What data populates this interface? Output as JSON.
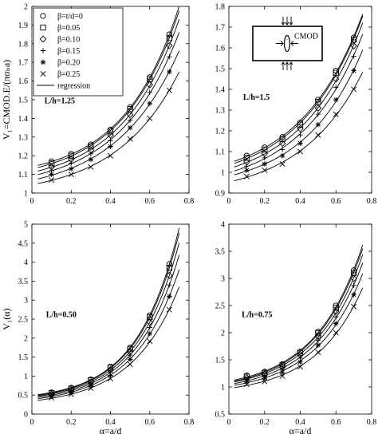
{
  "figure": {
    "legend_entries": [
      "β=t/d=0",
      "β=0.05",
      "β=0.10",
      "β=0.15",
      "β=0.20",
      "β=0.25",
      "regression"
    ],
    "inset_label": "CMOD"
  },
  "chart_data": [
    {
      "type": "scatter",
      "panel_label": "L/h=1.25",
      "ylabel": "V₁=CMOD.E/(πσₙa)",
      "xlabel": "",
      "xlim": [
        0,
        0.8
      ],
      "ylim": [
        1,
        2
      ],
      "xticks": [
        0,
        0.2,
        0.4,
        0.6,
        0.8
      ],
      "yticks": [
        1,
        1.1,
        1.2,
        1.3,
        1.4,
        1.5,
        1.6,
        1.7,
        1.8,
        1.9,
        2
      ],
      "legend_position": "top-left",
      "x": [
        0.1,
        0.2,
        0.3,
        0.4,
        0.5,
        0.6,
        0.7
      ],
      "series": [
        {
          "name": "β=t/d=0",
          "marker": "circle",
          "values": [
            1.17,
            1.21,
            1.26,
            1.34,
            1.46,
            1.62,
            1.85
          ]
        },
        {
          "name": "β=0.05",
          "marker": "square",
          "values": [
            1.16,
            1.2,
            1.25,
            1.33,
            1.45,
            1.61,
            1.83
          ]
        },
        {
          "name": "β=0.10",
          "marker": "diamond",
          "values": [
            1.14,
            1.18,
            1.23,
            1.31,
            1.42,
            1.58,
            1.79
          ]
        },
        {
          "name": "β=0.15",
          "marker": "plus",
          "values": [
            1.12,
            1.16,
            1.21,
            1.28,
            1.39,
            1.54,
            1.73
          ]
        },
        {
          "name": "β=0.20",
          "marker": "asterisk",
          "values": [
            1.1,
            1.13,
            1.18,
            1.25,
            1.35,
            1.48,
            1.65
          ]
        },
        {
          "name": "β=0.25",
          "marker": "cross",
          "values": [
            1.07,
            1.1,
            1.14,
            1.2,
            1.29,
            1.4,
            1.55
          ]
        }
      ]
    },
    {
      "type": "scatter",
      "panel_label": "L/h=1.5",
      "ylabel": "",
      "xlabel": "",
      "xlim": [
        0,
        0.8
      ],
      "ylim": [
        0.9,
        1.8
      ],
      "xticks": [
        0,
        0.2,
        0.4,
        0.6,
        0.8
      ],
      "yticks": [
        0.9,
        1,
        1.1,
        1.2,
        1.3,
        1.4,
        1.5,
        1.6,
        1.7,
        1.8
      ],
      "x": [
        0.1,
        0.2,
        0.3,
        0.4,
        0.5,
        0.6,
        0.7
      ],
      "series": [
        {
          "name": "β=t/d=0",
          "marker": "circle",
          "values": [
            1.08,
            1.12,
            1.17,
            1.24,
            1.35,
            1.49,
            1.65
          ]
        },
        {
          "name": "β=0.05",
          "marker": "square",
          "values": [
            1.07,
            1.11,
            1.16,
            1.23,
            1.34,
            1.48,
            1.64
          ]
        },
        {
          "name": "β=0.10",
          "marker": "diamond",
          "values": [
            1.05,
            1.09,
            1.14,
            1.21,
            1.31,
            1.45,
            1.61
          ]
        },
        {
          "name": "β=0.15",
          "marker": "plus",
          "values": [
            1.03,
            1.07,
            1.11,
            1.18,
            1.28,
            1.41,
            1.56
          ]
        },
        {
          "name": "β=0.20",
          "marker": "asterisk",
          "values": [
            1.01,
            1.04,
            1.08,
            1.14,
            1.23,
            1.35,
            1.49
          ]
        },
        {
          "name": "β=0.25",
          "marker": "cross",
          "values": [
            0.98,
            1.01,
            1.04,
            1.1,
            1.18,
            1.28,
            1.4
          ]
        }
      ]
    },
    {
      "type": "scatter",
      "panel_label": "L/h=0.50",
      "ylabel": "V₁(α)",
      "xlabel": "α=a/d",
      "xlim": [
        0,
        0.8
      ],
      "ylim": [
        0,
        5
      ],
      "xticks": [
        0,
        0.2,
        0.4,
        0.6,
        0.8
      ],
      "yticks": [
        0,
        0.5,
        1,
        1.5,
        2,
        2.5,
        3,
        3.5,
        4,
        4.5,
        5
      ],
      "x": [
        0.1,
        0.2,
        0.3,
        0.4,
        0.5,
        0.6,
        0.7
      ],
      "series": [
        {
          "name": "β=t/d=0",
          "marker": "circle",
          "values": [
            0.57,
            0.69,
            0.91,
            1.25,
            1.75,
            2.6,
            3.95
          ]
        },
        {
          "name": "β=0.05",
          "marker": "square",
          "values": [
            0.55,
            0.67,
            0.89,
            1.22,
            1.71,
            2.55,
            3.85
          ]
        },
        {
          "name": "β=0.10",
          "marker": "diamond",
          "values": [
            0.53,
            0.64,
            0.85,
            1.17,
            1.64,
            2.42,
            3.65
          ]
        },
        {
          "name": "β=0.15",
          "marker": "plus",
          "values": [
            0.5,
            0.61,
            0.8,
            1.1,
            1.55,
            2.28,
            3.4
          ]
        },
        {
          "name": "β=0.20",
          "marker": "asterisk",
          "values": [
            0.47,
            0.57,
            0.75,
            1.02,
            1.44,
            2.12,
            3.1
          ]
        },
        {
          "name": "β=0.25",
          "marker": "cross",
          "values": [
            0.43,
            0.52,
            0.68,
            0.93,
            1.31,
            1.92,
            2.75
          ]
        }
      ]
    },
    {
      "type": "scatter",
      "panel_label": "L/h=0.75",
      "ylabel": "",
      "xlabel": "α=a/d",
      "xlim": [
        0,
        0.8
      ],
      "ylim": [
        0.5,
        4
      ],
      "xticks": [
        0,
        0.2,
        0.4,
        0.6,
        0.8
      ],
      "yticks": [
        0.5,
        1,
        1.5,
        2,
        2.5,
        3,
        3.5,
        4
      ],
      "x": [
        0.1,
        0.2,
        0.3,
        0.4,
        0.5,
        0.6,
        0.7
      ],
      "series": [
        {
          "name": "β=t/d=0",
          "marker": "circle",
          "values": [
            1.21,
            1.28,
            1.42,
            1.65,
            2.02,
            2.5,
            3.15
          ]
        },
        {
          "name": "β=0.05",
          "marker": "square",
          "values": [
            1.19,
            1.26,
            1.4,
            1.63,
            1.99,
            2.46,
            3.1
          ]
        },
        {
          "name": "β=0.10",
          "marker": "diamond",
          "values": [
            1.17,
            1.24,
            1.37,
            1.59,
            1.93,
            2.39,
            3.0
          ]
        },
        {
          "name": "β=0.15",
          "marker": "plus",
          "values": [
            1.14,
            1.2,
            1.32,
            1.53,
            1.86,
            2.29,
            2.87
          ]
        },
        {
          "name": "β=0.20",
          "marker": "asterisk",
          "values": [
            1.1,
            1.16,
            1.27,
            1.46,
            1.77,
            2.17,
            2.7
          ]
        },
        {
          "name": "β=0.25",
          "marker": "cross",
          "values": [
            1.05,
            1.1,
            1.2,
            1.37,
            1.64,
            2.0,
            2.48
          ]
        }
      ]
    }
  ]
}
